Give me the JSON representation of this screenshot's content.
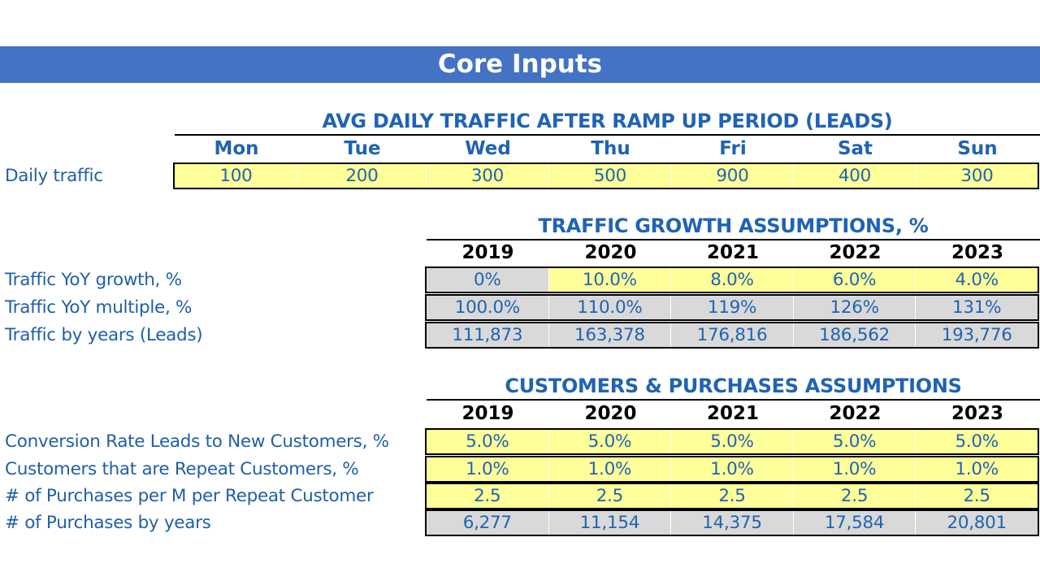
{
  "title": "Core Inputs",
  "daily_traffic": {
    "title": "AVG DAILY TRAFFIC AFTER RAMP UP PERIOD (LEADS)",
    "days": [
      "Mon",
      "Tue",
      "Wed",
      "Thu",
      "Fri",
      "Sat",
      "Sun"
    ],
    "row_label": "Daily traffic",
    "values": [
      "100",
      "200",
      "300",
      "500",
      "900",
      "400",
      "300"
    ]
  },
  "traffic_growth": {
    "title": "TRAFFIC GROWTH ASSUMPTIONS, %",
    "years": [
      "2019",
      "2020",
      "2021",
      "2022",
      "2023"
    ],
    "rows": [
      {
        "label": "Traffic YoY growth, %",
        "values": [
          "0%",
          "10.0%",
          "8.0%",
          "6.0%",
          "4.0%"
        ]
      },
      {
        "label": "Traffic YoY multiple, %",
        "values": [
          "100.0%",
          "110.0%",
          "119%",
          "126%",
          "131%"
        ]
      },
      {
        "label": "Traffic by years (Leads)",
        "values": [
          "111,873",
          "163,378",
          "176,816",
          "186,562",
          "193,776"
        ]
      }
    ]
  },
  "customers": {
    "title": "CUSTOMERS & PURCHASES ASSUMPTIONS",
    "years": [
      "2019",
      "2020",
      "2021",
      "2022",
      "2023"
    ],
    "rows": [
      {
        "label": "Conversion Rate Leads to New Customers, %",
        "values": [
          "5.0%",
          "5.0%",
          "5.0%",
          "5.0%",
          "5.0%"
        ]
      },
      {
        "label": "Customers that are Repeat Customers, %",
        "values": [
          "1.0%",
          "1.0%",
          "1.0%",
          "1.0%",
          "1.0%"
        ]
      },
      {
        "label": "# of Purchases per M per Repeat Customer",
        "values": [
          "2.5",
          "2.5",
          "2.5",
          "2.5",
          "2.5"
        ]
      },
      {
        "label": "# of Purchases by years",
        "values": [
          "6,277",
          "11,154",
          "14,375",
          "17,584",
          "20,801"
        ]
      }
    ]
  },
  "colors": {
    "banner": "#4472c4",
    "input_cell": "#ffff99",
    "calc_cell": "#d9d9d9",
    "text_blue": "#1f63b4"
  }
}
